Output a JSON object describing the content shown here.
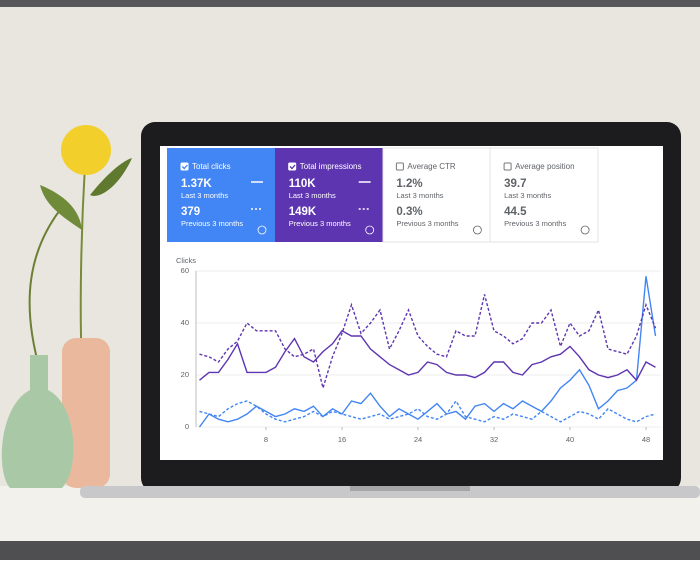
{
  "cards": [
    {
      "title": "Total clicks",
      "value": "1.37K",
      "period": "Last 3 months",
      "previous_value": "379",
      "previous_period": "Previous 3 months"
    },
    {
      "title": "Total impressions",
      "value": "110K",
      "period": "Last 3 months",
      "previous_value": "149K",
      "previous_period": "Previous 3 months"
    },
    {
      "title": "Average CTR",
      "value": "1.2%",
      "period": "Last 3 months",
      "previous_value": "0.3%",
      "previous_period": "Previous 3 months"
    },
    {
      "title": "Average position",
      "value": "39.7",
      "period": "Last 3 months",
      "previous_value": "44.5",
      "previous_period": "Previous 3 months"
    }
  ],
  "chart_data": {
    "type": "line",
    "ylabel": "Clicks",
    "x": [
      1,
      2,
      3,
      4,
      5,
      6,
      7,
      8,
      9,
      10,
      11,
      12,
      13,
      14,
      15,
      16,
      17,
      18,
      19,
      20,
      21,
      22,
      23,
      24,
      25,
      26,
      27,
      28,
      29,
      30,
      31,
      32,
      33,
      34,
      35,
      36,
      37,
      38,
      39,
      40,
      41,
      42,
      43,
      44,
      45,
      46,
      47,
      48,
      49
    ],
    "xlim": [
      1,
      49.5
    ],
    "xticks": [
      8,
      16,
      24,
      32,
      40,
      48
    ],
    "ylim": [
      0,
      60
    ],
    "yticks": [
      0,
      20,
      40,
      60
    ],
    "y2lim": [
      0,
      60
    ],
    "grid": true,
    "series": [
      {
        "color": "#4285f4",
        "dashed": false,
        "values": [
          0,
          5,
          3,
          2,
          3,
          5,
          8,
          6,
          4,
          5,
          7,
          6,
          8,
          4,
          7,
          5,
          10,
          9,
          13,
          8,
          4,
          7,
          5,
          3,
          6,
          9,
          5,
          6,
          3,
          8,
          9,
          6,
          9,
          7,
          10,
          8,
          6,
          10,
          15,
          18,
          22,
          16,
          7,
          10,
          14,
          15,
          18,
          58,
          35
        ]
      },
      {
        "color": "#4285f4",
        "dashed": true,
        "values": [
          6,
          5,
          4,
          7,
          9,
          10,
          8,
          5,
          3,
          2,
          3,
          4,
          6,
          4,
          6,
          5,
          4,
          3,
          4,
          5,
          3,
          4,
          5,
          7,
          4,
          3,
          5,
          10,
          4,
          3,
          2,
          4,
          3,
          5,
          4,
          3,
          6,
          4,
          2,
          4,
          6,
          5,
          3,
          7,
          5,
          3,
          2,
          4,
          5
        ]
      },
      {
        "color": "#5e35b1",
        "dashed": false,
        "axis": "y2",
        "values": [
          18,
          21,
          21,
          26,
          32,
          21,
          21,
          21,
          23,
          29,
          34,
          27,
          25,
          29,
          32,
          37,
          35,
          35,
          30,
          27,
          24,
          22,
          20,
          21,
          25,
          24,
          21,
          20,
          20,
          19,
          21,
          25,
          25,
          21,
          20,
          24,
          25,
          27,
          28,
          31,
          27,
          22,
          20,
          19,
          20,
          22,
          18,
          25,
          23
        ]
      },
      {
        "color": "#5e35b1",
        "dashed": true,
        "axis": "y2",
        "values": [
          28,
          27,
          25,
          30,
          33,
          40,
          37,
          37,
          37,
          30,
          27,
          28,
          30,
          15,
          27,
          36,
          47,
          36,
          40,
          45,
          30,
          37,
          45,
          35,
          31,
          28,
          27,
          37,
          35,
          35,
          51,
          37,
          35,
          32,
          34,
          40,
          40,
          45,
          31,
          40,
          35,
          37,
          45,
          30,
          29,
          28,
          35,
          47,
          38
        ]
      }
    ]
  }
}
